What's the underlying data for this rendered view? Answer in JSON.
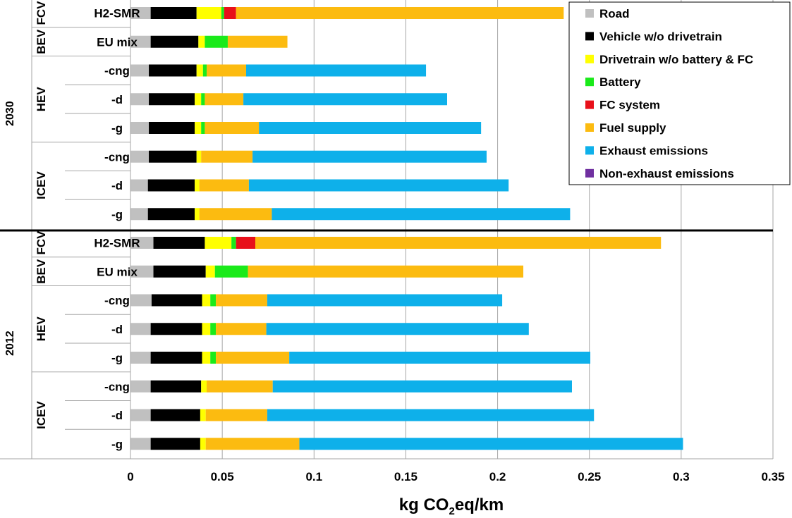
{
  "chart_data": {
    "type": "bar",
    "orientation": "horizontal",
    "stacked": true,
    "xlabel_main": "kg CO",
    "xlabel_sub": "2",
    "xlabel_rest": "eq/km",
    "xlim": [
      0,
      0.35
    ],
    "xticks": [
      0,
      0.05,
      0.1,
      0.15,
      0.2,
      0.25,
      0.3,
      0.35
    ],
    "xtick_labels": [
      "0",
      "0.05",
      "0.1",
      "0.15",
      "0.2",
      "0.25",
      "0.3",
      "0.35"
    ],
    "grid": "vertical",
    "legend_position": "top-right",
    "year_groups": [
      {
        "year": "2030",
        "groups": [
          {
            "name": "FCV",
            "rows": [
              "H2-SMR"
            ]
          },
          {
            "name": "BEV",
            "rows": [
              "EU mix"
            ]
          },
          {
            "name": "HEV",
            "rows": [
              "-cng",
              "-d",
              "-g"
            ]
          },
          {
            "name": "ICEV",
            "rows": [
              "-cng",
              "-d",
              "-g"
            ]
          }
        ]
      },
      {
        "year": "2012",
        "groups": [
          {
            "name": "FCV",
            "rows": [
              "H2-SMR"
            ]
          },
          {
            "name": "BEV",
            "rows": [
              "EU mix"
            ]
          },
          {
            "name": "HEV",
            "rows": [
              "-cng",
              "-d",
              "-g"
            ]
          },
          {
            "name": "ICEV",
            "rows": [
              "-cng",
              "-d",
              "-g"
            ]
          }
        ]
      }
    ],
    "series": [
      {
        "name": "Road",
        "color": "#c0c0c0",
        "values": [
          0.011,
          0.011,
          0.01,
          0.01,
          0.01,
          0.01,
          0.0095,
          0.0095,
          0.0125,
          0.0125,
          0.0115,
          0.011,
          0.011,
          0.011,
          0.011,
          0.011
        ]
      },
      {
        "name": "Vehicle w/o drivetrain",
        "color": "#000000",
        "values": [
          0.025,
          0.026,
          0.026,
          0.025,
          0.025,
          0.026,
          0.0255,
          0.0255,
          0.028,
          0.0285,
          0.0275,
          0.028,
          0.028,
          0.0275,
          0.027,
          0.027
        ]
      },
      {
        "name": "Drivetrain w/o battery & FC",
        "color": "#ffff00",
        "values": [
          0.0135,
          0.0035,
          0.0035,
          0.0035,
          0.0035,
          0.0025,
          0.0025,
          0.0025,
          0.0145,
          0.005,
          0.0045,
          0.0045,
          0.0045,
          0.003,
          0.003,
          0.003
        ]
      },
      {
        "name": "Battery",
        "color": "#1aea1a",
        "values": [
          0.0015,
          0.0125,
          0.002,
          0.002,
          0.002,
          0,
          0,
          0,
          0.0025,
          0.018,
          0.003,
          0.003,
          0.003,
          0,
          0,
          0
        ]
      },
      {
        "name": "FC system",
        "color": "#e8101a",
        "values": [
          0.0065,
          0,
          0,
          0,
          0,
          0,
          0,
          0,
          0.0105,
          0,
          0,
          0,
          0,
          0,
          0,
          0
        ]
      },
      {
        "name": "Fuel supply",
        "color": "#fcbb10",
        "values": [
          0.1785,
          0.0325,
          0.0215,
          0.021,
          0.0295,
          0.028,
          0.027,
          0.0395,
          0.221,
          0.15,
          0.028,
          0.0275,
          0.04,
          0.036,
          0.0335,
          0.051
        ]
      },
      {
        "name": "Exhaust emissions",
        "color": "#0eb0ea",
        "values": [
          0,
          0,
          0.098,
          0.111,
          0.121,
          0.1275,
          0.1415,
          0.1625,
          0,
          0,
          0.128,
          0.143,
          0.164,
          0.163,
          0.178,
          0.209
        ]
      },
      {
        "name": "Non-exhaust emissions",
        "color": "#7030a0",
        "values": [
          0,
          0,
          0,
          0,
          0,
          0,
          0,
          0,
          0,
          0,
          0,
          0,
          0,
          0,
          0,
          0
        ]
      }
    ]
  }
}
